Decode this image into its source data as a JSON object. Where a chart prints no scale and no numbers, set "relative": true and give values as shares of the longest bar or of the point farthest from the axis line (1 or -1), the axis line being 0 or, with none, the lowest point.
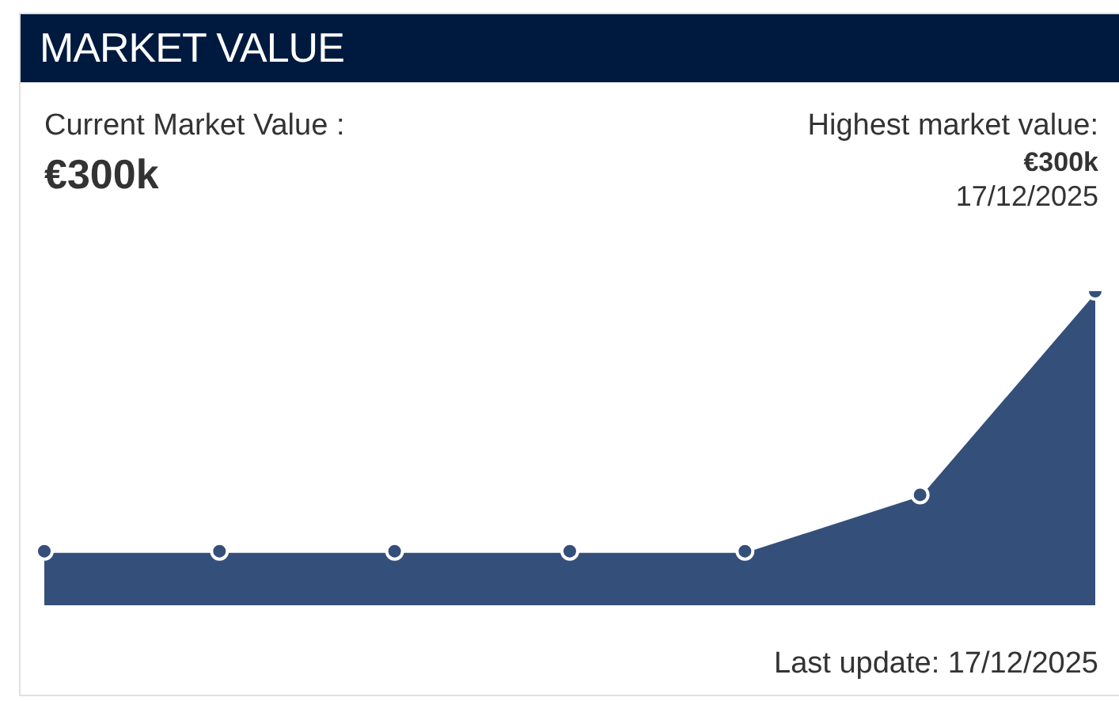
{
  "chart_data": {
    "type": "area",
    "title": "MARKET VALUE",
    "annotations": [
      "Current Market Value :",
      "€300k",
      "Highest market value:",
      "€300k",
      "17/12/2025",
      "Last update: 17/12/2025"
    ],
    "categories": [
      null,
      null,
      null,
      null,
      null,
      null,
      null
    ],
    "relative": true,
    "marker": "circle",
    "series": [
      {
        "color": "#34507a",
        "values": [
          0.17,
          0.17,
          0.17,
          0.17,
          0.17,
          0.35,
          1
        ]
      }
    ]
  }
}
